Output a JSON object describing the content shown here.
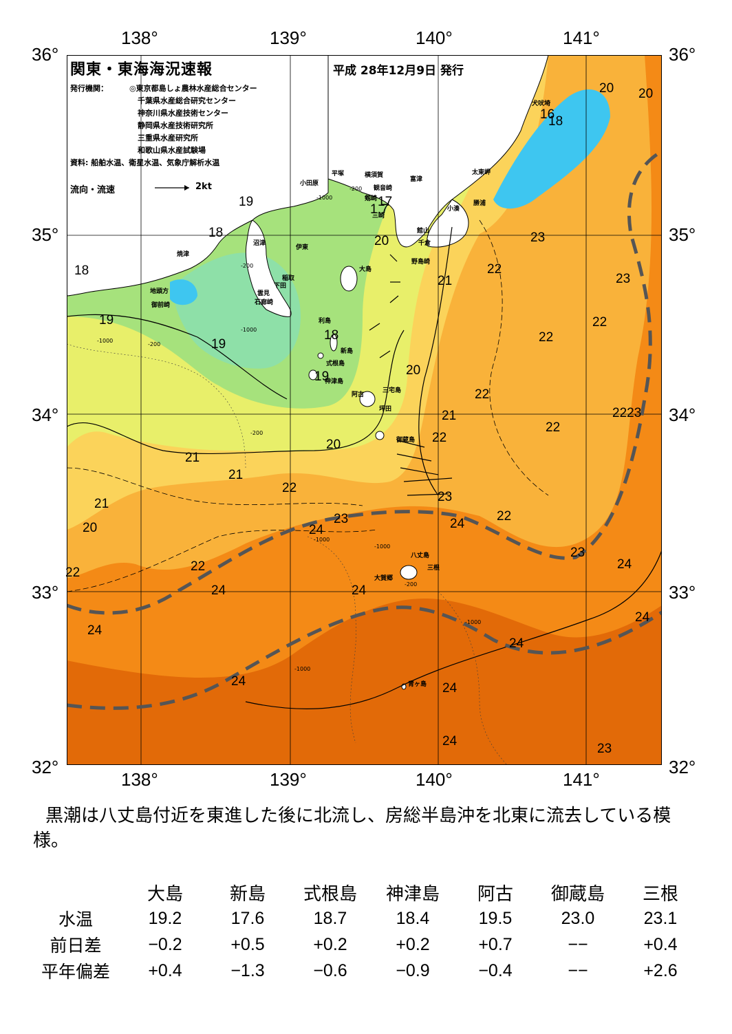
{
  "map": {
    "title": "関東・東海海況速報",
    "issue_date": "平成 28年12月9日 発行",
    "publisher_label": "発行機関：",
    "publishers": [
      "◎東京都島しょ農林水産総合センター",
      "千葉県水産総合研究センター",
      "神奈川県水産技術センター",
      "静岡県水産技術研究所",
      "三重県水産研究所",
      "和歌山県水産試験場"
    ],
    "sources": "資料: 船舶水温、衛星水温、気象庁解析水温",
    "flow_legend": "流向・流速",
    "flow_scale": "2kt",
    "lon_labels": [
      "138°",
      "139°",
      "140°",
      "141°"
    ],
    "lat_labels": [
      "36°",
      "35°",
      "34°",
      "33°",
      "32°"
    ],
    "colors": {
      "t17": "#3ec6f0",
      "t18": "#8ee0a8",
      "t19": "#a6e27c",
      "t20": "#e8ef6a",
      "t21": "#fbd35a",
      "t22": "#f9b23a",
      "t23": "#f48a16",
      "t24": "#e26a08",
      "land": "#ffffff",
      "kuroshio_axis": "#555555"
    },
    "place_names": [
      "焼津",
      "地頭方",
      "御前崎",
      "沼津",
      "伊東",
      "稲取",
      "下田",
      "雲見",
      "石廊崎",
      "小田原",
      "平塚",
      "横須賀",
      "観音崎",
      "剱崎",
      "三崎",
      "富津",
      "館山",
      "千倉",
      "野島崎",
      "太東岬",
      "勝浦",
      "小湊",
      "犬吠埼",
      "大島",
      "利島",
      "新島",
      "式根島",
      "神津島",
      "阿古",
      "三宅島",
      "坪田",
      "御蔵島",
      "八丈島",
      "三根",
      "大賀郷",
      "青ヶ島"
    ],
    "temperature_labels": [
      "20",
      "20",
      "16",
      "18",
      "19",
      "18",
      "18",
      "17",
      "1.7",
      "20",
      "23",
      "22",
      "21",
      "23",
      "22",
      "19",
      "19",
      "18",
      "19",
      "20",
      "22",
      "22",
      "21",
      "22",
      "2223",
      "20",
      "21",
      "22",
      "22",
      "21",
      "22",
      "23",
      "21",
      "20",
      "24",
      "24",
      "23",
      "24",
      "22",
      "22",
      "24",
      "24",
      "23",
      "24",
      "24",
      "24",
      "24",
      "24",
      "24",
      "23"
    ],
    "depth_labels": [
      "-200",
      "-1000",
      "-200",
      "-1000",
      "-200",
      "-1000",
      "-200",
      "-200",
      "-1000",
      "-1000",
      "-1000",
      "-1000"
    ]
  },
  "summary": "黒潮は八丈島付近を東進した後に北流し、房総半島沖を北東に流去している模様。",
  "table": {
    "columns": [
      "大島",
      "新島",
      "式根島",
      "神津島",
      "阿古",
      "御蔵島",
      "三根"
    ],
    "rows": [
      {
        "label": "水温",
        "values": [
          "19.2",
          "17.6",
          "18.7",
          "18.4",
          "19.5",
          "23.0",
          "23.1"
        ]
      },
      {
        "label": "前日差",
        "values": [
          "−0.2",
          "+0.5",
          "+0.2",
          "+0.2",
          "+0.7",
          "−−",
          "+0.4"
        ]
      },
      {
        "label": "平年偏差",
        "values": [
          "+0.4",
          "−1.3",
          "−0.6",
          "−0.9",
          "−0.4",
          "−−",
          "+2.6"
        ]
      }
    ]
  }
}
